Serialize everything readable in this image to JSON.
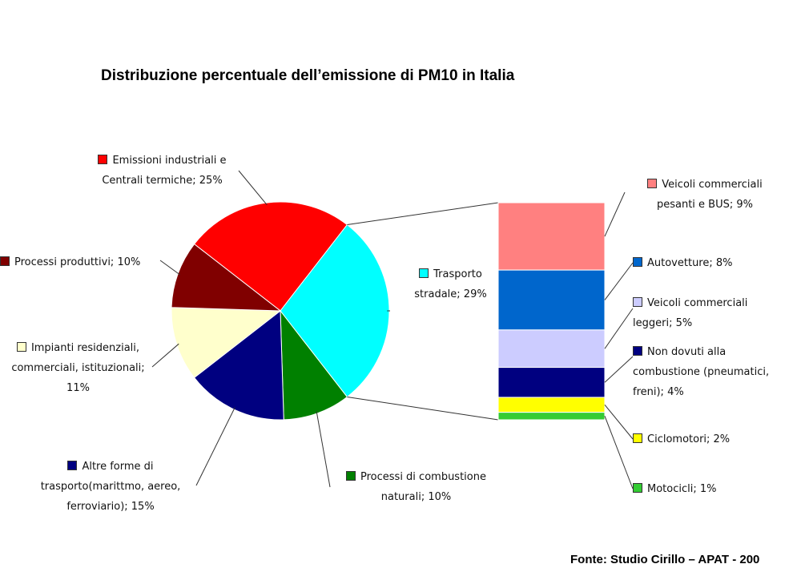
{
  "chart_data": {
    "type": "pie_of_bar",
    "title": "Distribuzione percentuale dell’emissione di PM10 in Italia",
    "source": "Fonte: Studio Cirillo – APAT - 200",
    "pie": {
      "labels": [
        "Emissioni industriali e Centrali termiche; 25%",
        "Trasporto stradale; 29%",
        "Processi di combustione naturali; 10%",
        "Altre forme di trasporto(marittmo, aereo, ferroviario); 15%",
        "Impianti residenziali, commerciali, istituzionali; 11%",
        "Processi produttivi; 10%"
      ],
      "values": [
        25,
        29,
        10,
        15,
        11,
        10
      ],
      "colors": [
        "#ff0000",
        "#00ffff",
        "#008000",
        "#000080",
        "#ffffcc",
        "#800000"
      ],
      "expanded": 1
    },
    "bar": {
      "labels": [
        "Veicoli commerciali pesanti e BUS; 9%",
        "Autovetture; 8%",
        "Veicoli commerciali leggeri; 5%",
        "Non dovuti alla combustione (pneumatici, freni); 4%",
        "Ciclomotori; 2%",
        "Motocicli; 1%"
      ],
      "values": [
        9,
        8,
        5,
        4,
        2,
        1
      ],
      "colors": [
        "#ff8080",
        "#0066cc",
        "#ccccff",
        "#000080",
        "#ffff00",
        "#33cc33"
      ]
    }
  }
}
